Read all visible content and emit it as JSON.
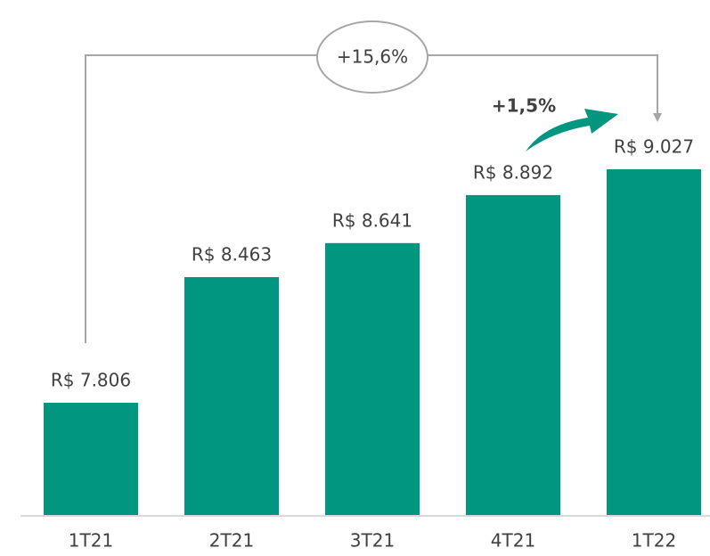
{
  "chart_data": {
    "type": "bar",
    "categories": [
      "1T21",
      "2T21",
      "3T21",
      "4T21",
      "1T22"
    ],
    "values": [
      7806,
      8463,
      8641,
      8892,
      9027
    ],
    "value_labels": [
      "R$ 7.806",
      "R$ 8.463",
      "R$ 8.641",
      "R$ 8.892",
      "R$ 9.027"
    ],
    "color": "#009680",
    "ylim": [
      7219,
      9600
    ],
    "annotations": [
      "+15,6%",
      "+1,5%"
    ]
  }
}
